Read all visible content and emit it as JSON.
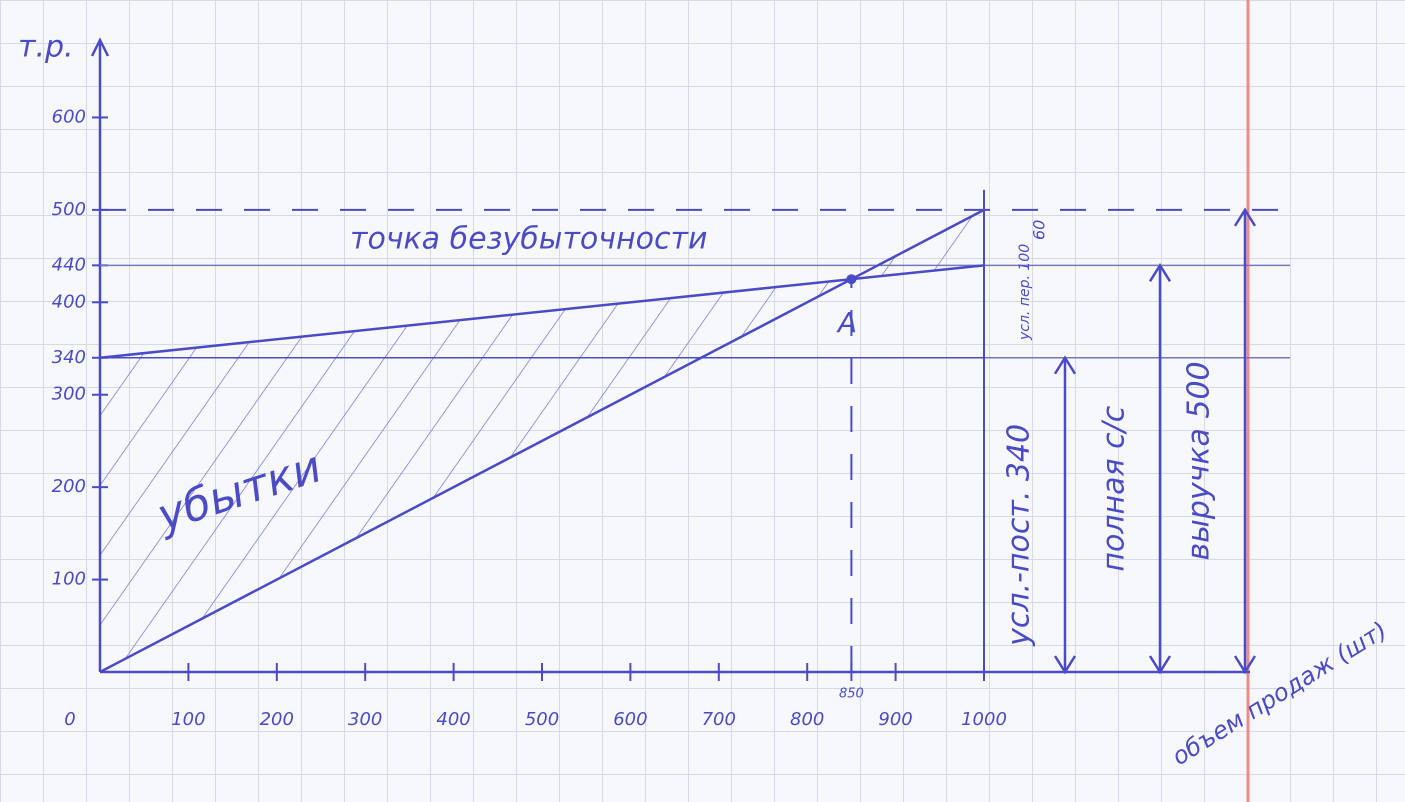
{
  "chart_data": {
    "type": "line",
    "y_label": "т.р.",
    "x_label": "объем продаж (шт)",
    "xlim": [
      0,
      1250
    ],
    "ylim": [
      0,
      660
    ],
    "xticks": [
      0,
      100,
      200,
      300,
      400,
      500,
      600,
      700,
      800,
      850,
      900,
      1000
    ],
    "yticks": [
      100,
      200,
      300,
      340,
      400,
      440,
      500,
      600
    ],
    "color": "#4b4bc6",
    "series": [
      {
        "name": "выручка",
        "x": [
          0,
          1000
        ],
        "values": [
          0,
          500
        ]
      },
      {
        "name": "полная с/с",
        "x": [
          0,
          1000
        ],
        "values": [
          340,
          440
        ]
      },
      {
        "name": "усл.-пост.",
        "x": [
          0,
          1000
        ],
        "values": [
          340,
          340
        ]
      }
    ],
    "reference_lines": [
      {
        "axis": "y",
        "value": 500,
        "dashed": true
      },
      {
        "axis": "y",
        "value": 440,
        "dashed": false
      },
      {
        "axis": "y",
        "value": 340,
        "dashed": false
      },
      {
        "axis": "x",
        "value": 850,
        "dashed": true
      }
    ],
    "break_even": {
      "x": 850,
      "y": 425,
      "label": "A"
    },
    "annotations": {
      "break_even_label": "точка безубыточности",
      "loss_label": "убытки",
      "variable_label": "усл. пер. 100",
      "profit_label": "60"
    },
    "brackets": [
      {
        "label": "усл.-пост. 340",
        "value": 340
      },
      {
        "label": "полная с/с",
        "value": 440
      },
      {
        "label": "выручка 500",
        "value": 500
      }
    ]
  }
}
